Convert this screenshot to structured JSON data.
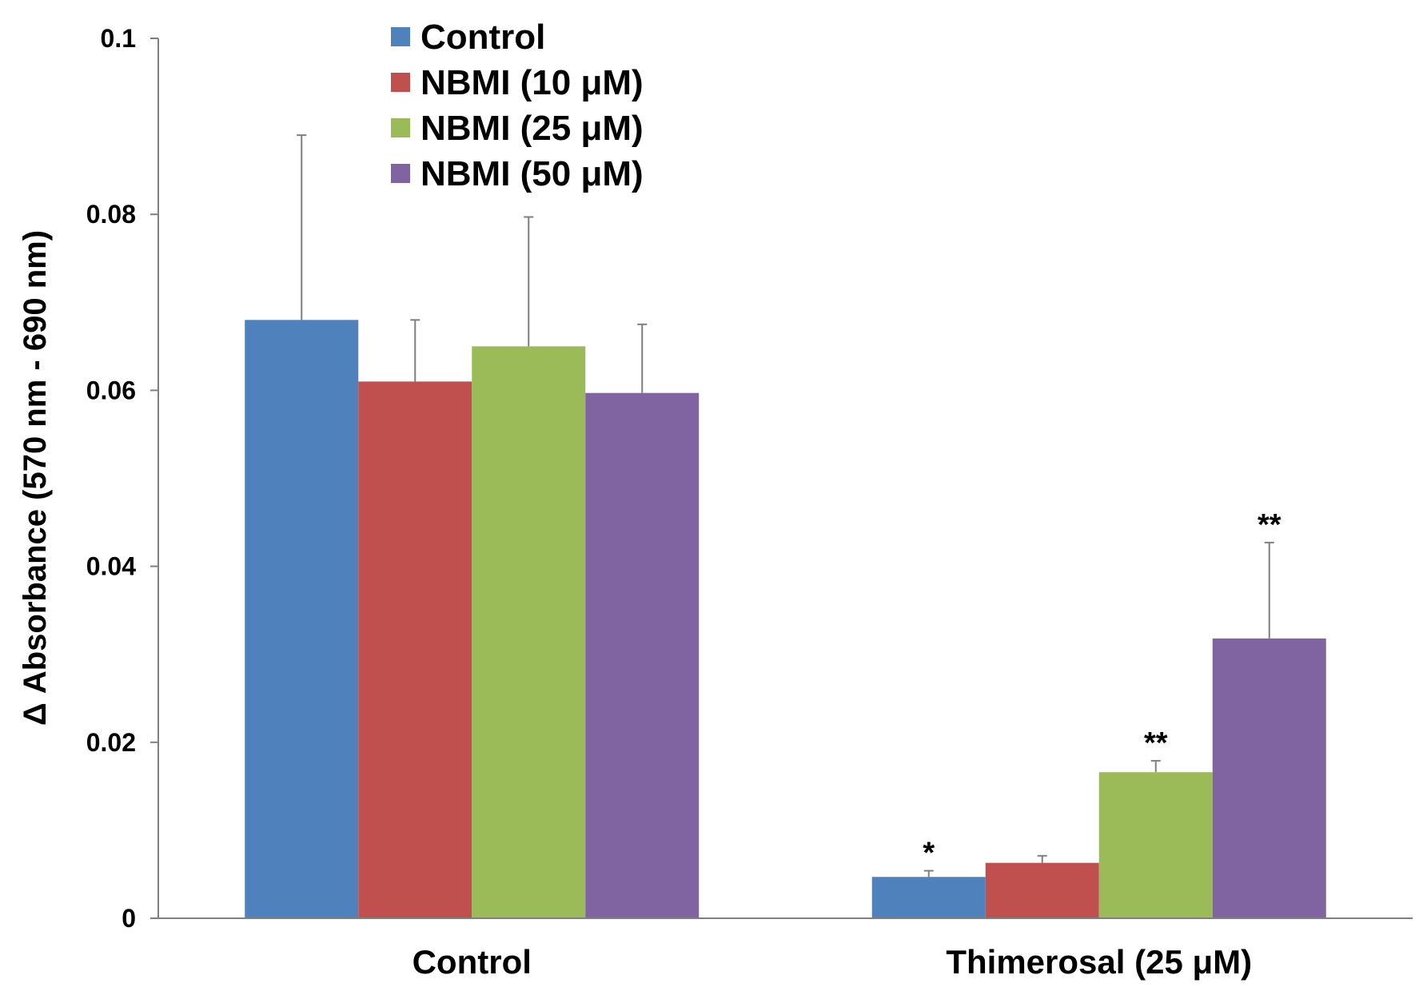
{
  "chart_data": {
    "type": "bar",
    "title": "",
    "xlabel": "",
    "ylabel": "Δ Absorbance (570 nm - 690 nm)",
    "ylim": [
      0,
      0.1
    ],
    "yticks": [
      {
        "value": 0,
        "label": "0"
      },
      {
        "value": 0.02,
        "label": "0.02"
      },
      {
        "value": 0.04,
        "label": "0.04"
      },
      {
        "value": 0.06,
        "label": "0.06"
      },
      {
        "value": 0.08,
        "label": "0.08"
      },
      {
        "value": 0.1,
        "label": "0.1"
      }
    ],
    "grid": false,
    "legend_position": "top-left",
    "categories": [
      "Control",
      "Thimerosal (25 μM)"
    ],
    "series": [
      {
        "name": "Control",
        "color": "#4F81BD",
        "values": [
          0.068,
          0.0047
        ],
        "errors": [
          0.021,
          0.0007
        ],
        "annotations": [
          "",
          "*"
        ]
      },
      {
        "name": "NBMI (10 μM)",
        "color": "#C0504D",
        "values": [
          0.061,
          0.0063
        ],
        "errors": [
          0.007,
          0.0008
        ],
        "annotations": [
          "",
          ""
        ]
      },
      {
        "name": "NBMI (25 μM)",
        "color": "#9BBB59",
        "values": [
          0.065,
          0.0166
        ],
        "errors": [
          0.0147,
          0.0013
        ],
        "annotations": [
          "",
          "**"
        ]
      },
      {
        "name": "NBMI (50 μM)",
        "color": "#8064A2",
        "values": [
          0.0597,
          0.0318
        ],
        "errors": [
          0.0078,
          0.0109
        ],
        "annotations": [
          "",
          "**"
        ]
      }
    ]
  }
}
